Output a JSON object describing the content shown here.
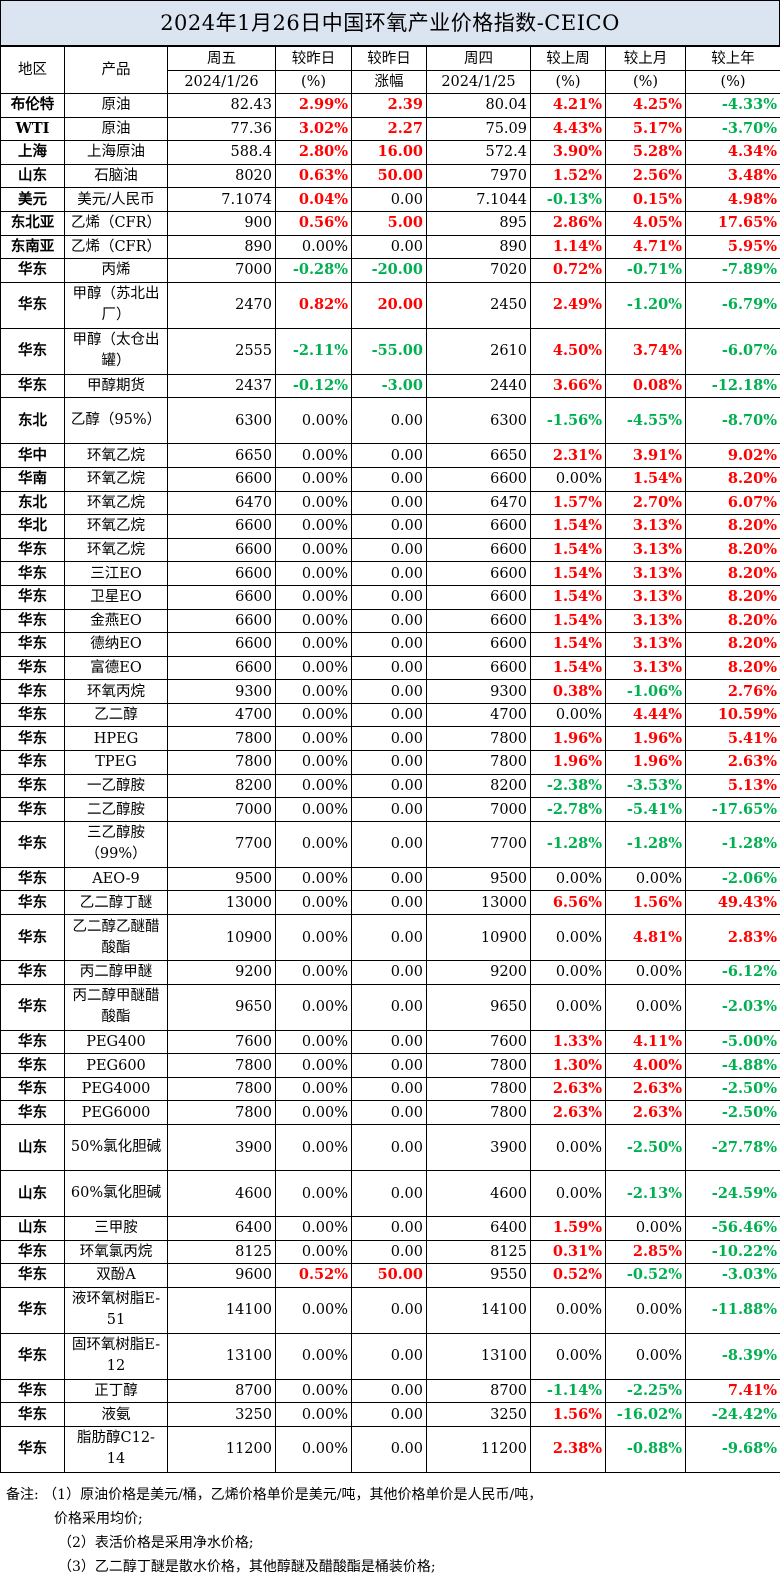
{
  "title": "2024年1月26日中国环氧产业价格指数-CEICO",
  "header": {
    "region": "地区",
    "product": "产品",
    "friday": "周五",
    "friday_date": "2024/1/26",
    "vs_yesterday": "较昨日",
    "vs_yesterday_unit": "(%)",
    "vs_yesterday_change": "较昨日",
    "vs_yesterday_change_unit": "涨幅",
    "thursday": "周四",
    "thursday_date": "2024/1/25",
    "vs_last_week": "较上周",
    "vs_last_week_unit": "(%)",
    "vs_last_month": "较上月",
    "vs_last_month_unit": "(%)",
    "vs_last_year": "较上年",
    "vs_last_year_unit": "(%)"
  },
  "rows": [
    {
      "region": "布伦特",
      "product": "原油",
      "fri": "82.43",
      "dpct": "2.99%",
      "dchg": "2.39",
      "thu": "80.04",
      "wk": "4.21%",
      "mo": "4.25%",
      "yr": "-4.33%",
      "tall": false
    },
    {
      "region": "WTI",
      "product": "原油",
      "fri": "77.36",
      "dpct": "3.02%",
      "dchg": "2.27",
      "thu": "75.09",
      "wk": "4.43%",
      "mo": "5.17%",
      "yr": "-3.70%",
      "tall": false
    },
    {
      "region": "上海",
      "product": "上海原油",
      "fri": "588.4",
      "dpct": "2.80%",
      "dchg": "16.00",
      "thu": "572.4",
      "wk": "3.90%",
      "mo": "5.28%",
      "yr": "4.34%",
      "tall": false
    },
    {
      "region": "山东",
      "product": "石脑油",
      "fri": "8020",
      "dpct": "0.63%",
      "dchg": "50.00",
      "thu": "7970",
      "wk": "1.52%",
      "mo": "2.56%",
      "yr": "3.48%",
      "tall": false
    },
    {
      "region": "美元",
      "product": "美元/人民币",
      "fri": "7.1074",
      "dpct": "0.04%",
      "dchg": "0.00",
      "thu": "7.1044",
      "wk": "-0.13%",
      "mo": "0.15%",
      "yr": "4.98%",
      "tall": false
    },
    {
      "region": "东北亚",
      "product": "乙烯（CFR）",
      "fri": "900",
      "dpct": "0.56%",
      "dchg": "5.00",
      "thu": "895",
      "wk": "2.86%",
      "mo": "4.05%",
      "yr": "17.65%",
      "tall": false
    },
    {
      "region": "东南亚",
      "product": "乙烯（CFR）",
      "fri": "890",
      "dpct": "0.00%",
      "dchg": "0.00",
      "thu": "890",
      "wk": "1.14%",
      "mo": "4.71%",
      "yr": "5.95%",
      "tall": false
    },
    {
      "region": "华东",
      "product": "丙烯",
      "fri": "7000",
      "dpct": "-0.28%",
      "dchg": "-20.00",
      "thu": "7020",
      "wk": "0.72%",
      "mo": "-0.71%",
      "yr": "-7.89%",
      "tall": false
    },
    {
      "region": "华东",
      "product": "甲醇（苏北出厂）",
      "fri": "2470",
      "dpct": "0.82%",
      "dchg": "20.00",
      "thu": "2450",
      "wk": "2.49%",
      "mo": "-1.20%",
      "yr": "-6.79%",
      "tall": true
    },
    {
      "region": "华东",
      "product": "甲醇（太仓出罐）",
      "fri": "2555",
      "dpct": "-2.11%",
      "dchg": "-55.00",
      "thu": "2610",
      "wk": "4.50%",
      "mo": "3.74%",
      "yr": "-6.07%",
      "tall": true
    },
    {
      "region": "华东",
      "product": "甲醇期货",
      "fri": "2437",
      "dpct": "-0.12%",
      "dchg": "-3.00",
      "thu": "2440",
      "wk": "3.66%",
      "mo": "0.08%",
      "yr": "-12.18%",
      "tall": false
    },
    {
      "region": "东北",
      "product": "乙醇（95%）",
      "fri": "6300",
      "dpct": "0.00%",
      "dchg": "0.00",
      "thu": "6300",
      "wk": "-1.56%",
      "mo": "-4.55%",
      "yr": "-8.70%",
      "tall": true
    },
    {
      "region": "华中",
      "product": "环氧乙烷",
      "fri": "6650",
      "dpct": "0.00%",
      "dchg": "0.00",
      "thu": "6650",
      "wk": "2.31%",
      "mo": "3.91%",
      "yr": "9.02%",
      "tall": false
    },
    {
      "region": "华南",
      "product": "环氧乙烷",
      "fri": "6600",
      "dpct": "0.00%",
      "dchg": "0.00",
      "thu": "6600",
      "wk": "0.00%",
      "mo": "1.54%",
      "yr": "8.20%",
      "tall": false
    },
    {
      "region": "东北",
      "product": "环氧乙烷",
      "fri": "6470",
      "dpct": "0.00%",
      "dchg": "0.00",
      "thu": "6470",
      "wk": "1.57%",
      "mo": "2.70%",
      "yr": "6.07%",
      "tall": false
    },
    {
      "region": "华北",
      "product": "环氧乙烷",
      "fri": "6600",
      "dpct": "0.00%",
      "dchg": "0.00",
      "thu": "6600",
      "wk": "1.54%",
      "mo": "3.13%",
      "yr": "8.20%",
      "tall": false
    },
    {
      "region": "华东",
      "product": "环氧乙烷",
      "fri": "6600",
      "dpct": "0.00%",
      "dchg": "0.00",
      "thu": "6600",
      "wk": "1.54%",
      "mo": "3.13%",
      "yr": "8.20%",
      "tall": false
    },
    {
      "region": "华东",
      "product": "三江EO",
      "fri": "6600",
      "dpct": "0.00%",
      "dchg": "0.00",
      "thu": "6600",
      "wk": "1.54%",
      "mo": "3.13%",
      "yr": "8.20%",
      "tall": false
    },
    {
      "region": "华东",
      "product": "卫星EO",
      "fri": "6600",
      "dpct": "0.00%",
      "dchg": "0.00",
      "thu": "6600",
      "wk": "1.54%",
      "mo": "3.13%",
      "yr": "8.20%",
      "tall": false
    },
    {
      "region": "华东",
      "product": "金燕EO",
      "fri": "6600",
      "dpct": "0.00%",
      "dchg": "0.00",
      "thu": "6600",
      "wk": "1.54%",
      "mo": "3.13%",
      "yr": "8.20%",
      "tall": false
    },
    {
      "region": "华东",
      "product": "德纳EO",
      "fri": "6600",
      "dpct": "0.00%",
      "dchg": "0.00",
      "thu": "6600",
      "wk": "1.54%",
      "mo": "3.13%",
      "yr": "8.20%",
      "tall": false
    },
    {
      "region": "华东",
      "product": "富德EO",
      "fri": "6600",
      "dpct": "0.00%",
      "dchg": "0.00",
      "thu": "6600",
      "wk": "1.54%",
      "mo": "3.13%",
      "yr": "8.20%",
      "tall": false
    },
    {
      "region": "华东",
      "product": "环氧丙烷",
      "fri": "9300",
      "dpct": "0.00%",
      "dchg": "0.00",
      "thu": "9300",
      "wk": "0.38%",
      "mo": "-1.06%",
      "yr": "2.76%",
      "tall": false
    },
    {
      "region": "华东",
      "product": "乙二醇",
      "fri": "4700",
      "dpct": "0.00%",
      "dchg": "0.00",
      "thu": "4700",
      "wk": "0.00%",
      "mo": "4.44%",
      "yr": "10.59%",
      "tall": false
    },
    {
      "region": "华东",
      "product": "HPEG",
      "fri": "7800",
      "dpct": "0.00%",
      "dchg": "0.00",
      "thu": "7800",
      "wk": "1.96%",
      "mo": "1.96%",
      "yr": "5.41%",
      "tall": false
    },
    {
      "region": "华东",
      "product": "TPEG",
      "fri": "7800",
      "dpct": "0.00%",
      "dchg": "0.00",
      "thu": "7800",
      "wk": "1.96%",
      "mo": "1.96%",
      "yr": "2.63%",
      "tall": false
    },
    {
      "region": "华东",
      "product": "一乙醇胺",
      "fri": "8200",
      "dpct": "0.00%",
      "dchg": "0.00",
      "thu": "8200",
      "wk": "-2.38%",
      "mo": "-3.53%",
      "yr": "5.13%",
      "tall": false
    },
    {
      "region": "华东",
      "product": "二乙醇胺",
      "fri": "7000",
      "dpct": "0.00%",
      "dchg": "0.00",
      "thu": "7000",
      "wk": "-2.78%",
      "mo": "-5.41%",
      "yr": "-17.65%",
      "tall": false
    },
    {
      "region": "华东",
      "product": "三乙醇胺（99%）",
      "fri": "7700",
      "dpct": "0.00%",
      "dchg": "0.00",
      "thu": "7700",
      "wk": "-1.28%",
      "mo": "-1.28%",
      "yr": "-1.28%",
      "tall": true
    },
    {
      "region": "华东",
      "product": "AEO-9",
      "fri": "9500",
      "dpct": "0.00%",
      "dchg": "0.00",
      "thu": "9500",
      "wk": "0.00%",
      "mo": "0.00%",
      "yr": "-2.06%",
      "tall": false
    },
    {
      "region": "华东",
      "product": "乙二醇丁醚",
      "fri": "13000",
      "dpct": "0.00%",
      "dchg": "0.00",
      "thu": "13000",
      "wk": "6.56%",
      "mo": "1.56%",
      "yr": "49.43%",
      "tall": false
    },
    {
      "region": "华东",
      "product": "乙二醇乙醚醋酸酯",
      "fri": "10900",
      "dpct": "0.00%",
      "dchg": "0.00",
      "thu": "10900",
      "wk": "0.00%",
      "mo": "4.81%",
      "yr": "2.83%",
      "tall": true
    },
    {
      "region": "华东",
      "product": "丙二醇甲醚",
      "fri": "9200",
      "dpct": "0.00%",
      "dchg": "0.00",
      "thu": "9200",
      "wk": "0.00%",
      "mo": "0.00%",
      "yr": "-6.12%",
      "tall": false
    },
    {
      "region": "华东",
      "product": "丙二醇甲醚醋酸酯",
      "fri": "9650",
      "dpct": "0.00%",
      "dchg": "0.00",
      "thu": "9650",
      "wk": "0.00%",
      "mo": "0.00%",
      "yr": "-2.03%",
      "tall": true
    },
    {
      "region": "华东",
      "product": "PEG400",
      "fri": "7600",
      "dpct": "0.00%",
      "dchg": "0.00",
      "thu": "7600",
      "wk": "1.33%",
      "mo": "4.11%",
      "yr": "-5.00%",
      "tall": false
    },
    {
      "region": "华东",
      "product": "PEG600",
      "fri": "7800",
      "dpct": "0.00%",
      "dchg": "0.00",
      "thu": "7800",
      "wk": "1.30%",
      "mo": "4.00%",
      "yr": "-4.88%",
      "tall": false
    },
    {
      "region": "华东",
      "product": "PEG4000",
      "fri": "7800",
      "dpct": "0.00%",
      "dchg": "0.00",
      "thu": "7800",
      "wk": "2.63%",
      "mo": "2.63%",
      "yr": "-2.50%",
      "tall": false
    },
    {
      "region": "华东",
      "product": "PEG6000",
      "fri": "7800",
      "dpct": "0.00%",
      "dchg": "0.00",
      "thu": "7800",
      "wk": "2.63%",
      "mo": "2.63%",
      "yr": "-2.50%",
      "tall": false
    },
    {
      "region": "山东",
      "product": "50%氯化胆碱",
      "fri": "3900",
      "dpct": "0.00%",
      "dchg": "0.00",
      "thu": "3900",
      "wk": "0.00%",
      "mo": "-2.50%",
      "yr": "-27.78%",
      "tall": true
    },
    {
      "region": "山东",
      "product": "60%氯化胆碱",
      "fri": "4600",
      "dpct": "0.00%",
      "dchg": "0.00",
      "thu": "4600",
      "wk": "0.00%",
      "mo": "-2.13%",
      "yr": "-24.59%",
      "tall": true
    },
    {
      "region": "山东",
      "product": "三甲胺",
      "fri": "6400",
      "dpct": "0.00%",
      "dchg": "0.00",
      "thu": "6400",
      "wk": "1.59%",
      "mo": "0.00%",
      "yr": "-56.46%",
      "tall": false
    },
    {
      "region": "华东",
      "product": "环氧氯丙烷",
      "fri": "8125",
      "dpct": "0.00%",
      "dchg": "0.00",
      "thu": "8125",
      "wk": "0.31%",
      "mo": "2.85%",
      "yr": "-10.22%",
      "tall": false
    },
    {
      "region": "华东",
      "product": "双酚A",
      "fri": "9600",
      "dpct": "0.52%",
      "dchg": "50.00",
      "thu": "9550",
      "wk": "0.52%",
      "mo": "-0.52%",
      "yr": "-3.03%",
      "tall": false
    },
    {
      "region": "华东",
      "product": "液环氧树脂E-51",
      "fri": "14100",
      "dpct": "0.00%",
      "dchg": "0.00",
      "thu": "14100",
      "wk": "0.00%",
      "mo": "0.00%",
      "yr": "-11.88%",
      "tall": true
    },
    {
      "region": "华东",
      "product": "固环氧树脂E-12",
      "fri": "13100",
      "dpct": "0.00%",
      "dchg": "0.00",
      "thu": "13100",
      "wk": "0.00%",
      "mo": "0.00%",
      "yr": "-8.39%",
      "tall": true
    },
    {
      "region": "华东",
      "product": "正丁醇",
      "fri": "8700",
      "dpct": "0.00%",
      "dchg": "0.00",
      "thu": "8700",
      "wk": "-1.14%",
      "mo": "-2.25%",
      "yr": "7.41%",
      "tall": false
    },
    {
      "region": "华东",
      "product": "液氨",
      "fri": "3250",
      "dpct": "0.00%",
      "dchg": "0.00",
      "thu": "3250",
      "wk": "1.56%",
      "mo": "-16.02%",
      "yr": "-24.42%",
      "tall": false
    },
    {
      "region": "华东",
      "product": "脂肪醇C12-14",
      "fri": "11200",
      "dpct": "0.00%",
      "dchg": "0.00",
      "thu": "11200",
      "wk": "2.38%",
      "mo": "-0.88%",
      "yr": "-9.68%",
      "tall": true
    }
  ],
  "notes": {
    "label": "备注:",
    "line1": "（1）原油价格是美元/桶，乙烯价格单价是美元/吨，其他价格单价是人民币/吨，",
    "line1b": "价格采用均价;",
    "line2": "（2）表活价格是采用净水价格;",
    "line3": "（3）乙二醇丁醚是散水价格，其他醇醚及醋酸酯是桶装价格;"
  },
  "colors": {
    "title_bg": "#dbe5f1",
    "positive": "#ff0000",
    "negative": "#00b050"
  }
}
